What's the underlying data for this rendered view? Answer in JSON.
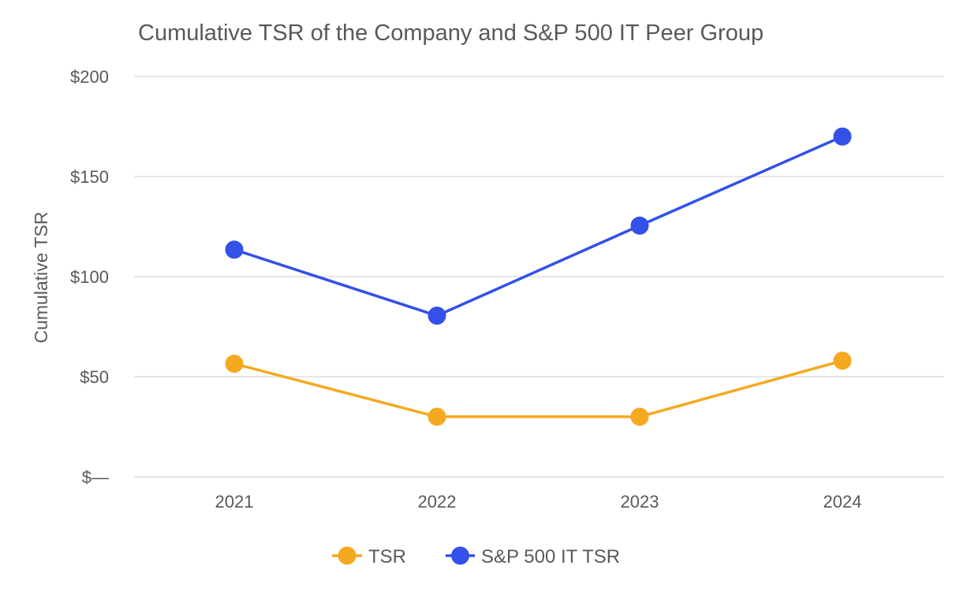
{
  "chart_data": {
    "type": "line",
    "title": "Cumulative TSR of the Company and S&P 500 IT Peer Group",
    "xlabel": "",
    "ylabel": "Cumulative TSR",
    "categories": [
      "2021",
      "2022",
      "2023",
      "2024"
    ],
    "y_ticks": [
      {
        "value": 0,
        "label": "$—"
      },
      {
        "value": 50,
        "label": "$50"
      },
      {
        "value": 100,
        "label": "$100"
      },
      {
        "value": 150,
        "label": "$150"
      },
      {
        "value": 200,
        "label": "$200"
      }
    ],
    "ylim": [
      0,
      200
    ],
    "grid": true,
    "legend_position": "bottom-center",
    "series": [
      {
        "name": "TSR",
        "color": "#F5A91F",
        "values": [
          56.5,
          30,
          30,
          58
        ]
      },
      {
        "name": "S&P 500 IT TSR",
        "color": "#3350E8",
        "values": [
          113.5,
          80.5,
          125.5,
          170
        ]
      }
    ]
  }
}
